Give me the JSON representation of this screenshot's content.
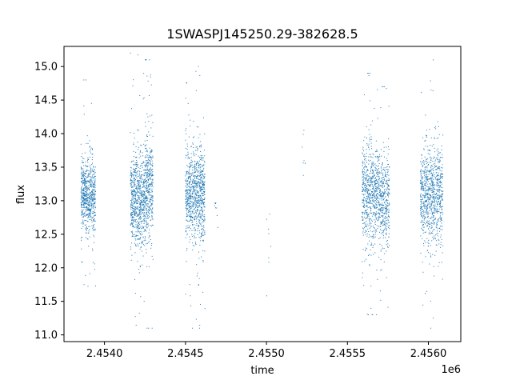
{
  "chart_data": {
    "type": "scatter",
    "title": "1SWASPJ145250.29-382628.5",
    "xlabel": "time",
    "ylabel": "flux",
    "x_offset_label": "1e6",
    "xlim": [
      2453750,
      2456200
    ],
    "ylim": [
      10.9,
      15.3
    ],
    "x_ticks": [
      2454000,
      2454500,
      2455000,
      2455500,
      2456000
    ],
    "x_tick_labels": [
      "2.4540",
      "2.4545",
      "2.4550",
      "2.4555",
      "2.4560"
    ],
    "y_ticks": [
      11.0,
      11.5,
      12.0,
      12.5,
      13.0,
      13.5,
      14.0,
      14.5,
      15.0
    ],
    "y_tick_labels": [
      "11.0",
      "11.5",
      "12.0",
      "12.5",
      "13.0",
      "13.5",
      "14.0",
      "14.5",
      "15.0"
    ],
    "grid": false,
    "marker_color": "#1f77b4",
    "series": [
      {
        "clusters": [
          {
            "x_start": 2453855,
            "x_end": 2453945,
            "center": 13.1,
            "spread": 0.25,
            "min": 11.2,
            "max": 14.8,
            "points": 700
          },
          {
            "x_start": 2454160,
            "x_end": 2454250,
            "center": 13.0,
            "spread": 0.35,
            "min": 11.1,
            "max": 15.2,
            "points": 700
          },
          {
            "x_start": 2454250,
            "x_end": 2454300,
            "center": 13.2,
            "spread": 0.4,
            "min": 11.1,
            "max": 15.1,
            "points": 400
          },
          {
            "x_start": 2454500,
            "x_end": 2454620,
            "center": 13.1,
            "spread": 0.35,
            "min": 11.1,
            "max": 15.0,
            "points": 900
          },
          {
            "x_start": 2454680,
            "x_end": 2454700,
            "center": 12.9,
            "spread": 0.15,
            "min": 12.6,
            "max": 13.1,
            "points": 8
          },
          {
            "x_start": 2455000,
            "x_end": 2455030,
            "center": 12.3,
            "spread": 0.4,
            "min": 11.4,
            "max": 12.8,
            "points": 8
          },
          {
            "x_start": 2455220,
            "x_end": 2455240,
            "center": 13.7,
            "spread": 0.3,
            "min": 13.2,
            "max": 14.2,
            "points": 8
          },
          {
            "x_start": 2455590,
            "x_end": 2455700,
            "center": 13.1,
            "spread": 0.35,
            "min": 11.3,
            "max": 14.9,
            "points": 700
          },
          {
            "x_start": 2455700,
            "x_end": 2455760,
            "center": 13.0,
            "spread": 0.35,
            "min": 11.1,
            "max": 14.7,
            "points": 350
          },
          {
            "x_start": 2455950,
            "x_end": 2456090,
            "center": 13.1,
            "spread": 0.35,
            "min": 11.1,
            "max": 15.1,
            "points": 900
          }
        ]
      }
    ]
  }
}
